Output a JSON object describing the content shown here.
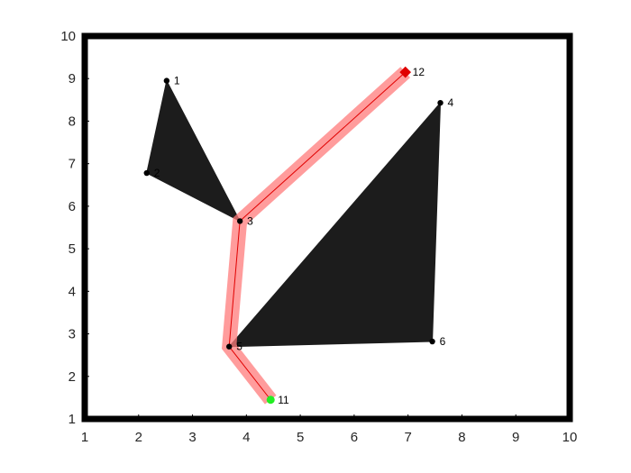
{
  "chart_data": {
    "type": "scatter",
    "title": "",
    "xlabel": "",
    "ylabel": "",
    "xlim": [
      1,
      10
    ],
    "ylim": [
      1,
      10
    ],
    "xticks": [
      "1",
      "2",
      "3",
      "4",
      "5",
      "6",
      "7",
      "8",
      "9",
      "10"
    ],
    "yticks": [
      "1",
      "2",
      "3",
      "4",
      "5",
      "6",
      "7",
      "8",
      "9",
      "10"
    ],
    "grid": false,
    "legend": "none",
    "obstacles": [
      {
        "vertices": [
          "1",
          "2",
          "3"
        ]
      },
      {
        "vertices": [
          "4",
          "5",
          "6"
        ]
      }
    ],
    "vertices": [
      {
        "label": "1",
        "x": 2.52,
        "y": 8.95
      },
      {
        "label": "2",
        "x": 2.15,
        "y": 6.78
      },
      {
        "label": "3",
        "x": 3.88,
        "y": 5.65
      },
      {
        "label": "4",
        "x": 7.6,
        "y": 8.43
      },
      {
        "label": "5",
        "x": 3.68,
        "y": 2.7
      },
      {
        "label": "6",
        "x": 7.45,
        "y": 2.82
      },
      {
        "label": "11",
        "x": 4.45,
        "y": 1.45
      },
      {
        "label": "12",
        "x": 6.95,
        "y": 9.15
      }
    ],
    "path": {
      "vertices": [
        "11",
        "5",
        "3",
        "12"
      ],
      "start": "11",
      "goal": "12"
    },
    "colors": {
      "obstacle": "#1c1c1c",
      "path_band": "#ff7b7b",
      "path_line": "#e00000",
      "start": "#22ee22",
      "goal": "#e00000",
      "vertex": "#000000",
      "frame": "#000000",
      "plot_background": "#ffffff"
    }
  }
}
